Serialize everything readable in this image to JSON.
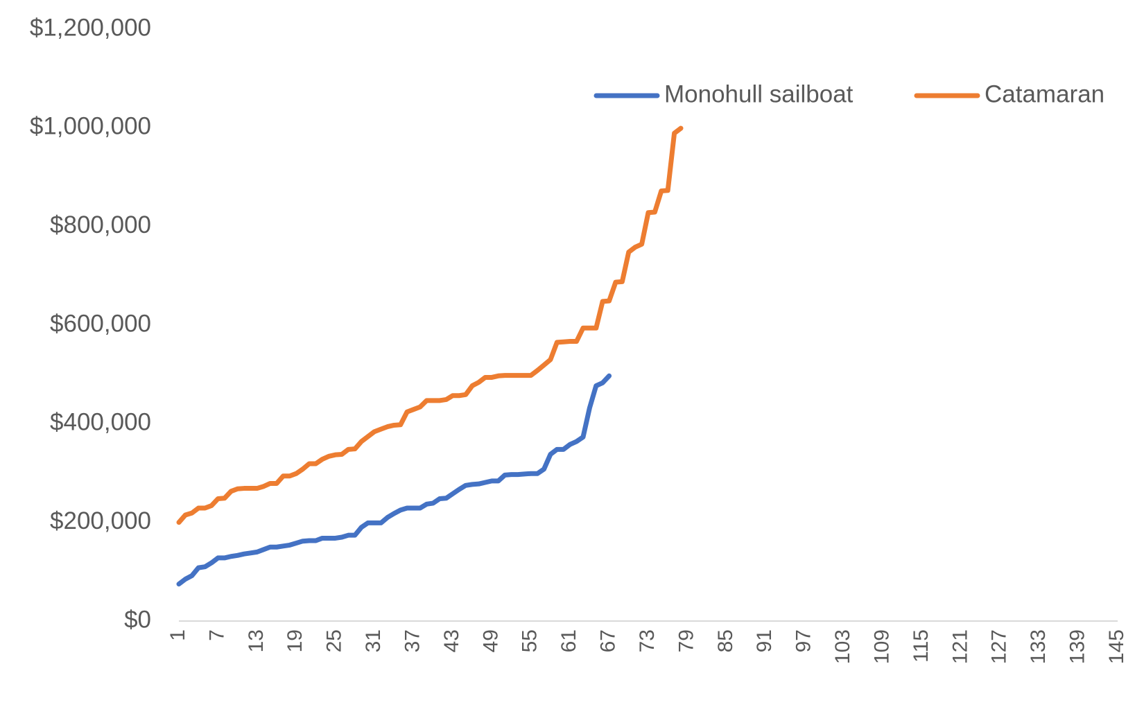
{
  "chart_data": {
    "type": "line",
    "title": "",
    "xlabel": "",
    "ylabel": "",
    "ylim": [
      0,
      1200000
    ],
    "yticks": [
      0,
      200000,
      400000,
      600000,
      800000,
      1000000,
      1200000
    ],
    "ytick_labels": [
      "$0",
      "$200,000",
      "$400,000",
      "$600,000",
      "$800,000",
      "$1,000,000",
      "$1,200,000"
    ],
    "x_range": [
      1,
      145
    ],
    "xtick_values": [
      1,
      7,
      13,
      19,
      25,
      31,
      37,
      43,
      49,
      55,
      61,
      67,
      73,
      79,
      85,
      91,
      97,
      103,
      109,
      115,
      121,
      127,
      133,
      139,
      145
    ],
    "xtick_labels": [
      "1",
      "7",
      "13",
      "19",
      "25",
      "31",
      "37",
      "43",
      "49",
      "55",
      "61",
      "67",
      "73",
      "79",
      "85",
      "91",
      "97",
      "103",
      "109",
      "115",
      "121",
      "127",
      "133",
      "139",
      "145"
    ],
    "grid": false,
    "legend_position": "top-right",
    "series": [
      {
        "name": "Monohull sailboat",
        "color": "#4472C4",
        "values": [
          75000,
          85000,
          92000,
          108000,
          110000,
          118000,
          128000,
          128000,
          131000,
          133000,
          136000,
          138000,
          140000,
          145000,
          150000,
          150000,
          152000,
          154000,
          158000,
          162000,
          163000,
          163000,
          168000,
          168000,
          168000,
          170000,
          174000,
          174000,
          190000,
          199000,
          199000,
          199000,
          210000,
          218000,
          225000,
          229000,
          229000,
          229000,
          237000,
          239000,
          248000,
          249000,
          258000,
          267000,
          275000,
          277000,
          278000,
          281000,
          284000,
          284000,
          296000,
          297000,
          297000,
          298000,
          299000,
          299000,
          308000,
          338000,
          348000,
          348000,
          358000,
          364000,
          373000,
          432000,
          477000,
          483000,
          497000
        ]
      },
      {
        "name": "Catamaran",
        "color": "#ED7D31",
        "values": [
          200000,
          215000,
          219000,
          229000,
          229000,
          234000,
          248000,
          249000,
          263000,
          268000,
          269000,
          269000,
          269000,
          273000,
          279000,
          279000,
          294000,
          294000,
          299000,
          308000,
          319000,
          319000,
          328000,
          334000,
          337000,
          338000,
          348000,
          349000,
          364000,
          374000,
          384000,
          389000,
          394000,
          397000,
          398000,
          424000,
          429000,
          434000,
          447000,
          447000,
          447000,
          449000,
          457000,
          457000,
          459000,
          477000,
          484000,
          494000,
          494000,
          497000,
          498000,
          498000,
          498000,
          498000,
          498000,
          508000,
          519000,
          530000,
          565000,
          566000,
          567000,
          567000,
          594000,
          594000,
          594000,
          648000,
          649000,
          687000,
          688000,
          748000,
          758000,
          764000,
          828000,
          829000,
          872000,
          873000,
          989000,
          999000
        ]
      }
    ]
  }
}
